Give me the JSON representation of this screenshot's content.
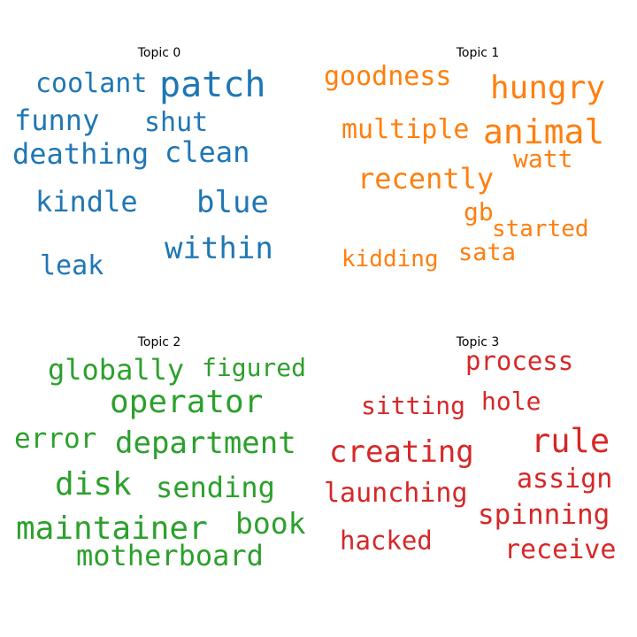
{
  "chart_data": {
    "type": "wordcloud",
    "panels": [
      {
        "title": "Topic 0",
        "color": "#1f77b4",
        "words": [
          "patch",
          "coolant",
          "funny",
          "shut",
          "deathing",
          "clean",
          "kindle",
          "blue",
          "within",
          "leak"
        ]
      },
      {
        "title": "Topic 1",
        "color": "#ff7f0e",
        "words": [
          "goodness",
          "hungry",
          "multiple",
          "animal",
          "watt",
          "recently",
          "gb",
          "started",
          "kidding",
          "sata"
        ]
      },
      {
        "title": "Topic 2",
        "color": "#2ca02c",
        "words": [
          "globally",
          "figured",
          "operator",
          "error",
          "department",
          "disk",
          "sending",
          "maintainer",
          "book",
          "motherboard"
        ]
      },
      {
        "title": "Topic 3",
        "color": "#d62728",
        "words": [
          "process",
          "sitting",
          "hole",
          "rule",
          "creating",
          "assign",
          "launching",
          "spinning",
          "hacked",
          "receive"
        ]
      }
    ]
  }
}
